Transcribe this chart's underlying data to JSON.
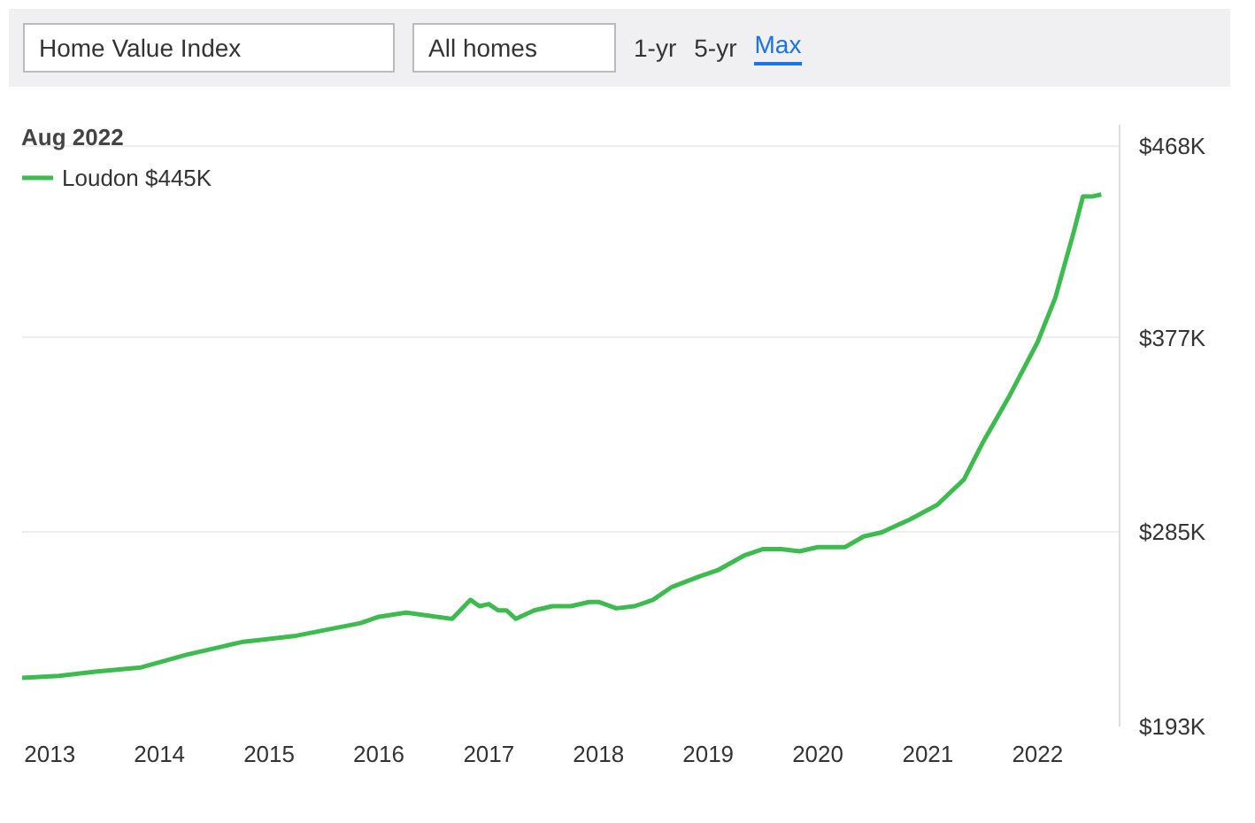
{
  "chart_data": {
    "type": "line",
    "legend_title": "Aug 2022",
    "legend": "top left",
    "grid": "y",
    "line_style": "solid",
    "marker": "none",
    "annotations": [
      "Home Value Index",
      "All homes",
      "1-yr",
      "5-yr",
      "Max"
    ],
    "x": [
      "2012-10",
      "2013-02",
      "2013-06",
      "2013-11",
      "2014-04",
      "2014-10",
      "2015-04",
      "2015-11",
      "2016-01",
      "2016-04",
      "2016-09",
      "2016-11",
      "2016-12",
      "2017-01",
      "2017-02",
      "2017-03",
      "2017-04",
      "2017-06",
      "2017-08",
      "2017-10",
      "2017-12",
      "2018-01",
      "2018-03",
      "2018-05",
      "2018-07",
      "2018-09",
      "2018-12",
      "2019-02",
      "2019-05",
      "2019-07",
      "2019-09",
      "2019-11",
      "2020-01",
      "2020-04",
      "2020-06",
      "2020-08",
      "2020-11",
      "2021-02",
      "2021-05",
      "2021-07",
      "2021-10",
      "2022-01",
      "2022-03",
      "2022-05",
      "2022-06",
      "2022-07",
      "2022-08"
    ],
    "series": [
      {
        "name": "Loudon $445K",
        "color": "#3dbb4e",
        "values": [
          216,
          217,
          219,
          221,
          227,
          233,
          236,
          242,
          245,
          247,
          244,
          253,
          250,
          251,
          248,
          248,
          244,
          248,
          250,
          250,
          252,
          252,
          249,
          250,
          253,
          259,
          264,
          267,
          274,
          277,
          277,
          276,
          278,
          278,
          283,
          285,
          291,
          298,
          310,
          327,
          350,
          375,
          396,
          427,
          444,
          444,
          445
        ]
      }
    ],
    "xlim": [
      "2012-10",
      "2022-10"
    ],
    "xticks": [
      "2013",
      "2014",
      "2015",
      "2016",
      "2017",
      "2018",
      "2019",
      "2020",
      "2021",
      "2022"
    ],
    "ylim": [
      193,
      478
    ],
    "yticks": [
      {
        "value": 193,
        "label": "$193K"
      },
      {
        "value": 285,
        "label": "$285K"
      },
      {
        "value": 377,
        "label": "$377K"
      },
      {
        "value": 468,
        "label": "$468K"
      }
    ]
  }
}
